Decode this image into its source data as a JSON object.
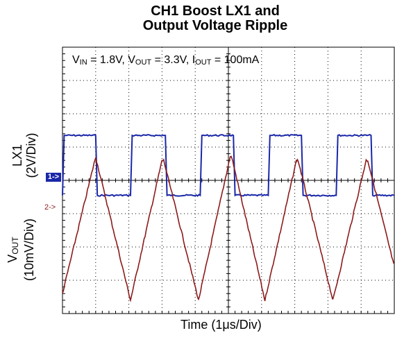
{
  "title_line1": "CH1 Boost LX1 and",
  "title_line2": "Output Voltage Ripple",
  "conditions": {
    "vin_sym": "V",
    "vin_sub": "IN",
    "vin_val": " = 1.8V, ",
    "vout_sym": "V",
    "vout_sub": "OUT",
    "vout_val": " = 3.3V, ",
    "iout_sym": "I",
    "iout_sub": "OUT",
    "iout_val": " = 100mA"
  },
  "y_label_lx1_line1": "LX1",
  "y_label_lx1_line2": "(2V/Div)",
  "y_label_vout_sym": "V",
  "y_label_vout_sub": "OUT",
  "y_label_vout_line2": "(10mV/Div)",
  "x_label": "Time (1μs/Div)",
  "ch1_marker": "1->",
  "ch2_marker": "2->",
  "colors": {
    "ch1": "#1a27a8",
    "ch2": "#8b1a1a",
    "grid": "#000000"
  },
  "chart_data": {
    "type": "line",
    "x_unit": "μs",
    "x_range": [
      0,
      10
    ],
    "series": [
      {
        "name": "LX1",
        "unit": "V",
        "volts_per_div": 2,
        "points": [
          [
            0,
            0
          ],
          [
            0.05,
            3.6
          ],
          [
            1.0,
            3.6
          ],
          [
            1.05,
            0
          ],
          [
            2.05,
            0
          ],
          [
            2.1,
            3.6
          ],
          [
            3.1,
            3.6
          ],
          [
            3.15,
            0
          ],
          [
            4.15,
            0
          ],
          [
            4.2,
            3.6
          ],
          [
            5.15,
            3.6
          ],
          [
            5.2,
            0
          ],
          [
            6.2,
            0
          ],
          [
            6.25,
            3.6
          ],
          [
            7.2,
            3.6
          ],
          [
            7.25,
            0
          ],
          [
            8.25,
            0
          ],
          [
            8.3,
            3.6
          ],
          [
            9.3,
            3.6
          ],
          [
            9.35,
            0
          ],
          [
            10,
            0
          ]
        ]
      },
      {
        "name": "VOUT",
        "unit": "mV",
        "mv_per_div": 10,
        "points": [
          [
            0,
            -20
          ],
          [
            0.95,
            19
          ],
          [
            1.0,
            21
          ],
          [
            2.05,
            -22
          ],
          [
            3.0,
            20
          ],
          [
            3.05,
            20
          ],
          [
            4.1,
            -22
          ],
          [
            5.05,
            21
          ],
          [
            5.1,
            21
          ],
          [
            6.1,
            -22
          ],
          [
            7.05,
            20
          ],
          [
            7.1,
            20
          ],
          [
            8.15,
            -22
          ],
          [
            9.15,
            20
          ],
          [
            9.2,
            20
          ],
          [
            10,
            -12
          ]
        ]
      }
    ],
    "grid": true,
    "divisions": {
      "x": 10,
      "y": 8
    }
  }
}
